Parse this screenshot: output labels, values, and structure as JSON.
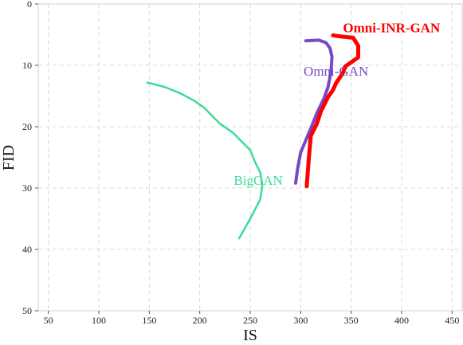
{
  "chart_data": {
    "type": "line",
    "xlabel": "IS",
    "ylabel": "FID",
    "xlim": [
      40,
      460
    ],
    "ylim": [
      0,
      50
    ],
    "y_inverted": true,
    "x_ticks": [
      50,
      100,
      150,
      200,
      250,
      300,
      350,
      400,
      450
    ],
    "y_ticks": [
      0,
      10,
      20,
      30,
      40,
      50
    ],
    "grid": true,
    "series": [
      {
        "name": "BigGAN",
        "color": "#3ddc97",
        "label_at": [
          258,
          29.5
        ],
        "width": 2.5,
        "bold": false,
        "x": [
          148,
          165,
          180,
          195,
          205,
          212,
          220,
          233,
          242,
          250,
          254,
          260,
          262,
          260,
          250,
          239
        ],
        "y": [
          12.8,
          13.5,
          14.5,
          15.8,
          17.0,
          18.2,
          19.5,
          21.0,
          22.5,
          23.8,
          25.5,
          27.5,
          29.5,
          31.8,
          35.0,
          38.2
        ]
      },
      {
        "name": "Omni-GAN",
        "color": "#7549c8",
        "label_at": [
          335,
          11.7
        ],
        "width": 4,
        "bold": false,
        "x": [
          295,
          297,
          300,
          310,
          316,
          323,
          327,
          330,
          331,
          329,
          325,
          318,
          305
        ],
        "y": [
          29.2,
          26.8,
          24.2,
          20.3,
          17.8,
          15.4,
          13.6,
          11.1,
          8.6,
          7.2,
          6.3,
          5.9,
          6.0
        ]
      },
      {
        "name": "Omni-INR-GAN",
        "color": "#ff0000",
        "label_at": [
          390,
          4.6
        ],
        "width": 5,
        "bold": true,
        "x": [
          306,
          308,
          310,
          316,
          320,
          327,
          332,
          335,
          342,
          344,
          350,
          357,
          357,
          352,
          340,
          332
        ],
        "y": [
          29.7,
          25.2,
          21.5,
          19.5,
          17.5,
          15.2,
          14.0,
          12.9,
          11.2,
          10.2,
          9.5,
          8.7,
          6.8,
          5.5,
          5.3,
          5.1
        ]
      }
    ]
  }
}
